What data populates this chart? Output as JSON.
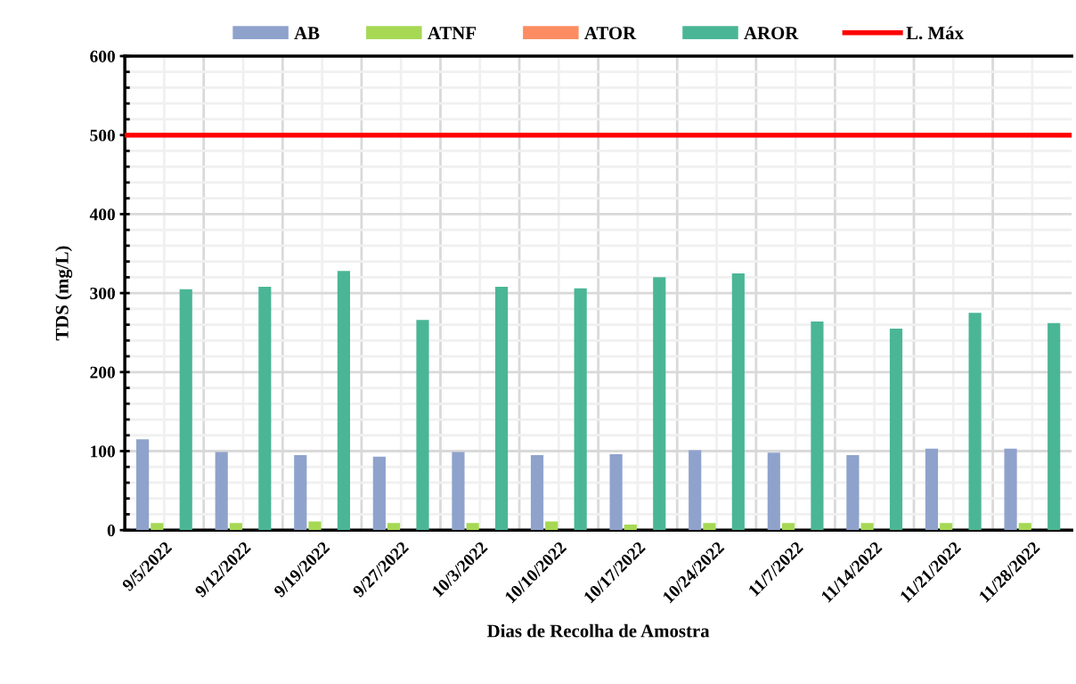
{
  "chart_data": {
    "type": "bar",
    "xlabel": "Dias de Recolha de Amostra",
    "ylabel": "TDS (mg/L)",
    "categories": [
      "9/5/2022",
      "9/12/2022",
      "9/19/2022",
      "9/27/2022",
      "10/3/2022",
      "10/10/2022",
      "10/17/2022",
      "10/24/2022",
      "11/7/2022",
      "11/14/2022",
      "11/21/2022",
      "11/28/2022"
    ],
    "series": [
      {
        "name": "AB",
        "color": "#8fa2cc",
        "values": [
          115,
          99,
          95,
          93,
          99,
          95,
          96,
          101,
          98,
          95,
          103,
          103
        ]
      },
      {
        "name": "ATNF",
        "color": "#a6d854",
        "values": [
          9,
          9,
          11,
          9,
          9,
          11,
          7,
          9,
          9,
          9,
          9,
          9
        ]
      },
      {
        "name": "ATOR",
        "color": "#fc8d62",
        "values": [
          null,
          null,
          null,
          null,
          null,
          null,
          null,
          null,
          null,
          null,
          null,
          null
        ]
      },
      {
        "name": "AROR",
        "color": "#4ab695",
        "values": [
          305,
          308,
          328,
          266,
          308,
          306,
          320,
          325,
          264,
          255,
          275,
          262
        ]
      }
    ],
    "ylim": [
      0,
      600
    ],
    "yticks": [
      0,
      100,
      200,
      300,
      400,
      500,
      600
    ],
    "ref_lines": [
      {
        "axis": "y",
        "value": 500,
        "label": "L. Máx",
        "color": "#ff0000",
        "line_style": "solid"
      }
    ],
    "grid": true,
    "legend": "top"
  }
}
